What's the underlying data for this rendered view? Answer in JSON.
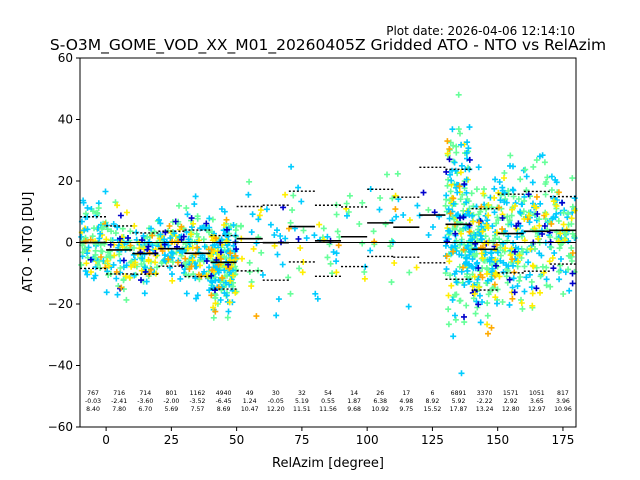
{
  "chart_data": {
    "type": "scatter",
    "plot_date": "Plot date: 2026-04-06 12:14:10",
    "title": "S-O3M_GOME_VOD_XX_M01_20260405Z Gridded ATO - NTO vs RelAzim",
    "xlabel": "RelAzim [degree]",
    "ylabel": "ATO - NTO [DU]",
    "xlim": [
      -10,
      180
    ],
    "ylim": [
      -60,
      60
    ],
    "xticks": [
      0,
      25,
      50,
      75,
      100,
      125,
      150,
      175
    ],
    "yticks": [
      -60,
      -40,
      -20,
      0,
      20,
      40,
      60
    ],
    "marker_colors": [
      "#0000cc",
      "#00ccff",
      "#66ff99",
      "#ffee00",
      "#ffaa00"
    ],
    "bins": [
      {
        "x": -5,
        "count": "767",
        "mean": "-0.03",
        "std": "8.40"
      },
      {
        "x": 5,
        "count": "716",
        "mean": "-2.41",
        "std": "7.80"
      },
      {
        "x": 15,
        "count": "714",
        "mean": "-3.60",
        "std": "6.70"
      },
      {
        "x": 25,
        "count": "801",
        "mean": "-2.00",
        "std": "5.69"
      },
      {
        "x": 35,
        "count": "1162",
        "mean": "-3.52",
        "std": "7.57"
      },
      {
        "x": 45,
        "count": "4940",
        "mean": "-6.45",
        "std": "8.69"
      },
      {
        "x": 55,
        "count": "49",
        "mean": "1.24",
        "std": "10.47"
      },
      {
        "x": 65,
        "count": "30",
        "mean": "-0.05",
        "std": "12.20"
      },
      {
        "x": 75,
        "count": "32",
        "mean": "5.19",
        "std": "11.51"
      },
      {
        "x": 85,
        "count": "54",
        "mean": "0.55",
        "std": "11.56"
      },
      {
        "x": 95,
        "count": "14",
        "mean": "1.87",
        "std": "9.68"
      },
      {
        "x": 105,
        "count": "26",
        "mean": "6.38",
        "std": "10.92"
      },
      {
        "x": 115,
        "count": "17",
        "mean": "4.98",
        "std": "9.75"
      },
      {
        "x": 125,
        "count": "6",
        "mean": "8.92",
        "std": "15.52"
      },
      {
        "x": 135,
        "count": "6891",
        "mean": "5.92",
        "std": "17.87"
      },
      {
        "x": 145,
        "count": "3370",
        "mean": "-2.22",
        "std": "13.24"
      },
      {
        "x": 155,
        "count": "1571",
        "mean": "2.92",
        "std": "12.80"
      },
      {
        "x": 165,
        "count": "1051",
        "mean": "3.65",
        "std": "12.97"
      },
      {
        "x": 175,
        "count": "817",
        "mean": "3.96",
        "std": "10.96"
      }
    ]
  }
}
